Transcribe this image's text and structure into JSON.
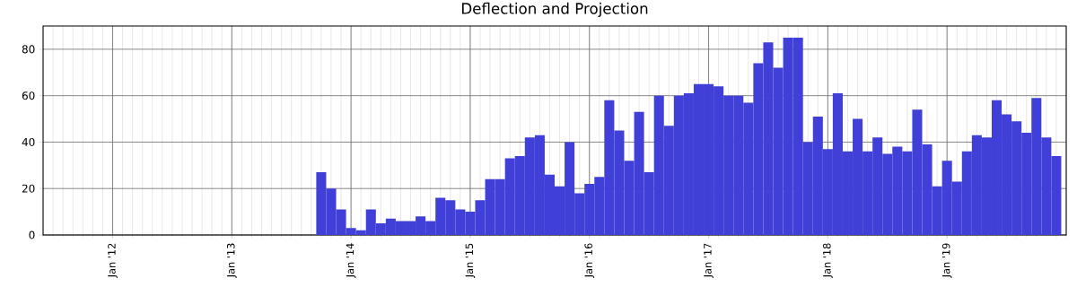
{
  "chart_data": {
    "type": "bar",
    "title": "Deflection and Projection",
    "x": [
      "2013-10",
      "2013-11",
      "2013-12",
      "2014-01",
      "2014-02",
      "2014-03",
      "2014-04",
      "2014-05",
      "2014-06",
      "2014-07",
      "2014-08",
      "2014-09",
      "2014-10",
      "2014-11",
      "2014-12",
      "2015-01",
      "2015-02",
      "2015-03",
      "2015-04",
      "2015-05",
      "2015-06",
      "2015-07",
      "2015-08",
      "2015-09",
      "2015-10",
      "2015-11",
      "2015-12",
      "2016-01",
      "2016-02",
      "2016-03",
      "2016-04",
      "2016-05",
      "2016-06",
      "2016-07",
      "2016-08",
      "2016-09",
      "2016-10",
      "2016-11",
      "2016-12",
      "2017-01",
      "2017-02",
      "2017-03",
      "2017-04",
      "2017-05",
      "2017-06",
      "2017-07",
      "2017-08",
      "2017-09",
      "2017-10",
      "2017-11",
      "2017-12",
      "2018-01",
      "2018-02",
      "2018-03",
      "2018-04",
      "2018-05",
      "2018-06",
      "2018-07",
      "2018-08",
      "2018-09",
      "2018-10",
      "2018-11",
      "2018-12",
      "2019-01",
      "2019-02",
      "2019-03",
      "2019-04",
      "2019-05",
      "2019-06",
      "2019-07",
      "2019-08",
      "2019-09",
      "2019-10",
      "2019-11",
      "2019-12"
    ],
    "values": [
      27,
      20,
      11,
      3,
      2,
      11,
      5,
      7,
      6,
      6,
      8,
      6,
      16,
      15,
      11,
      10,
      15,
      24,
      24,
      33,
      34,
      42,
      43,
      26,
      21,
      40,
      18,
      22,
      25,
      58,
      45,
      32,
      53,
      27,
      60,
      47,
      60,
      61,
      65,
      65,
      64,
      60,
      60,
      57,
      74,
      83,
      72,
      85,
      85,
      40,
      51,
      37,
      61,
      36,
      50,
      36,
      42,
      35,
      38,
      36,
      54,
      39,
      21,
      32,
      23,
      36,
      43,
      42,
      58,
      52,
      49,
      44,
      59,
      42,
      34
    ],
    "color": "#4040d8",
    "xlim": [
      "2011-06",
      "2020-01"
    ],
    "xticks": [
      {
        "value": "2012-01",
        "label": "Jan '12"
      },
      {
        "value": "2013-01",
        "label": "Jan '13"
      },
      {
        "value": "2014-01",
        "label": "Jan '14"
      },
      {
        "value": "2015-01",
        "label": "Jan '15"
      },
      {
        "value": "2016-01",
        "label": "Jan '16"
      },
      {
        "value": "2017-01",
        "label": "Jan '17"
      },
      {
        "value": "2018-01",
        "label": "Jan '18"
      },
      {
        "value": "2019-01",
        "label": "Jan '19"
      }
    ],
    "ylim": [
      0,
      90
    ],
    "yticks": [
      0,
      20,
      40,
      60,
      80
    ],
    "grid": true
  }
}
